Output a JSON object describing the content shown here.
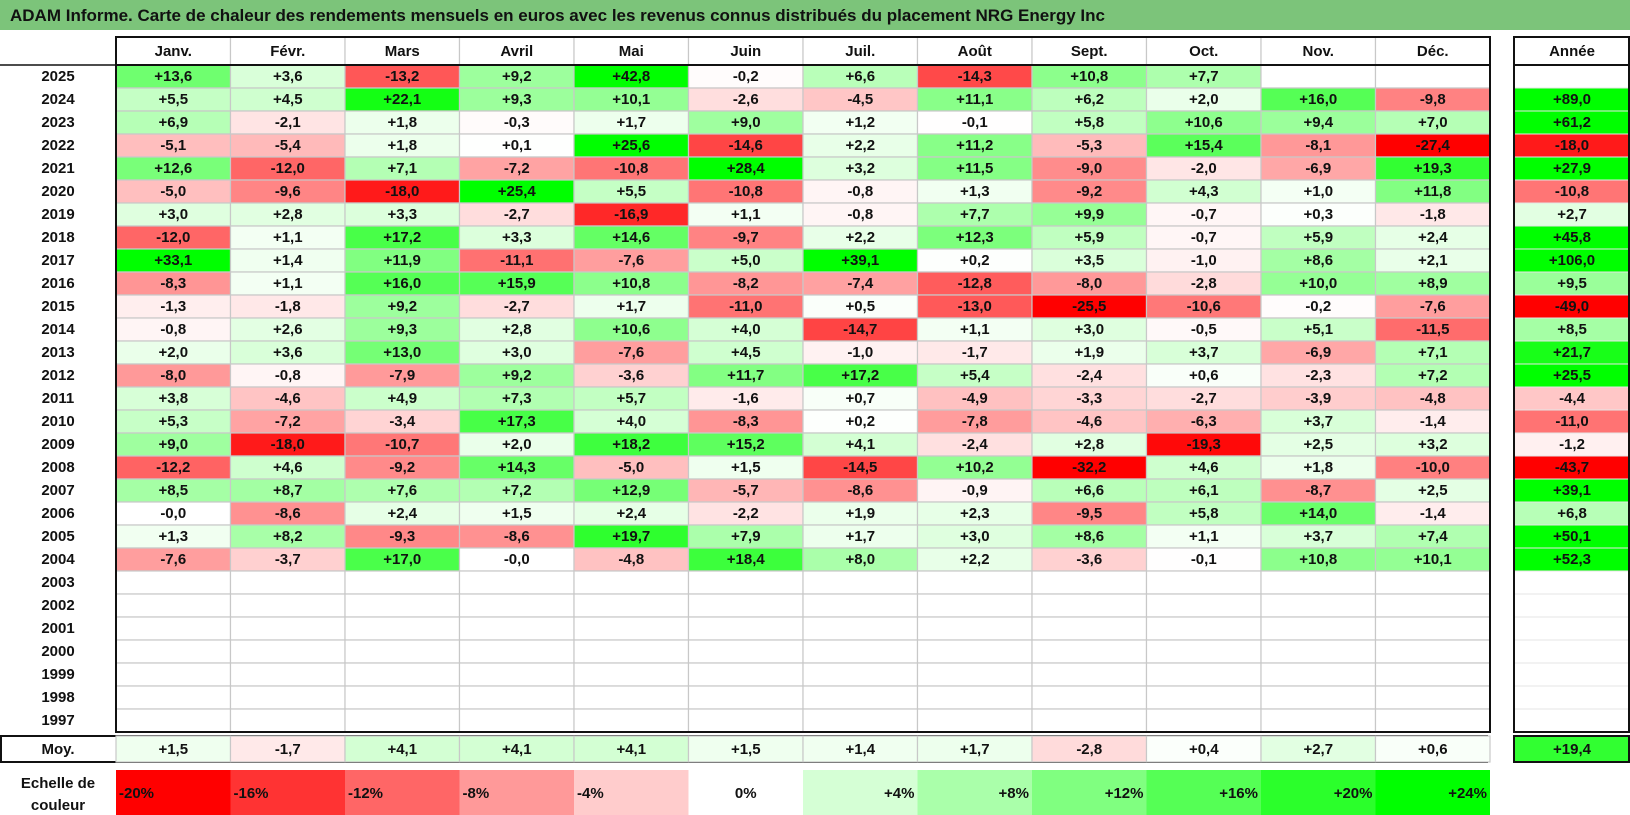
{
  "title": "ADAM Informe. Carte de chaleur des rendements mensuels en euros avec les revenus connus distribués du placement NRG Energy Inc",
  "chart_data": {
    "type": "heatmap",
    "months": [
      "Janv.",
      "Févr.",
      "Mars",
      "Avril",
      "Mai",
      "Juin",
      "Juil.",
      "Août",
      "Sept.",
      "Oct.",
      "Nov.",
      "Déc."
    ],
    "year_column_label": "Année",
    "rows": [
      {
        "year": "2025",
        "values": [
          "+13,6",
          "+3,6",
          "-13,2",
          "+9,2",
          "+42,8",
          "-0,2",
          "+6,6",
          "-14,3",
          "+10,8",
          "+7,7",
          "",
          ""
        ],
        "annual": ""
      },
      {
        "year": "2024",
        "values": [
          "+5,5",
          "+4,5",
          "+22,1",
          "+9,3",
          "+10,1",
          "-2,6",
          "-4,5",
          "+11,1",
          "+6,2",
          "+2,0",
          "+16,0",
          "-9,8"
        ],
        "annual": "+89,0"
      },
      {
        "year": "2023",
        "values": [
          "+6,9",
          "-2,1",
          "+1,8",
          "-0,3",
          "+1,7",
          "+9,0",
          "+1,2",
          "-0,1",
          "+5,8",
          "+10,6",
          "+9,4",
          "+7,0"
        ],
        "annual": "+61,2"
      },
      {
        "year": "2022",
        "values": [
          "-5,1",
          "-5,4",
          "+1,8",
          "+0,1",
          "+25,6",
          "-14,6",
          "+2,2",
          "+11,2",
          "-5,3",
          "+15,4",
          "-8,1",
          "-27,4"
        ],
        "annual": "-18,0"
      },
      {
        "year": "2021",
        "values": [
          "+12,6",
          "-12,0",
          "+7,1",
          "-7,2",
          "-10,8",
          "+28,4",
          "+3,2",
          "+11,5",
          "-9,0",
          "-2,0",
          "-6,9",
          "+19,3"
        ],
        "annual": "+27,9"
      },
      {
        "year": "2020",
        "values": [
          "-5,0",
          "-9,6",
          "-18,0",
          "+25,4",
          "+5,5",
          "-10,8",
          "-0,8",
          "+1,3",
          "-9,2",
          "+4,3",
          "+1,0",
          "+11,8"
        ],
        "annual": "-10,8"
      },
      {
        "year": "2019",
        "values": [
          "+3,0",
          "+2,8",
          "+3,3",
          "-2,7",
          "-16,9",
          "+1,1",
          "-0,8",
          "+7,7",
          "+9,9",
          "-0,7",
          "+0,3",
          "-1,8"
        ],
        "annual": "+2,7"
      },
      {
        "year": "2018",
        "values": [
          "-12,0",
          "+1,1",
          "+17,2",
          "+3,3",
          "+14,6",
          "-9,7",
          "+2,2",
          "+12,3",
          "+5,9",
          "-0,7",
          "+5,9",
          "+2,4"
        ],
        "annual": "+45,8"
      },
      {
        "year": "2017",
        "values": [
          "+33,1",
          "+1,4",
          "+11,9",
          "-11,1",
          "-7,6",
          "+5,0",
          "+39,1",
          "+0,2",
          "+3,5",
          "-1,0",
          "+8,6",
          "+2,1"
        ],
        "annual": "+106,0"
      },
      {
        "year": "2016",
        "values": [
          "-8,3",
          "+1,1",
          "+16,0",
          "+15,9",
          "+10,8",
          "-8,2",
          "-7,4",
          "-12,8",
          "-8,0",
          "-2,8",
          "+10,0",
          "+8,9"
        ],
        "annual": "+9,5"
      },
      {
        "year": "2015",
        "values": [
          "-1,3",
          "-1,8",
          "+9,2",
          "-2,7",
          "+1,7",
          "-11,0",
          "+0,5",
          "-13,0",
          "-25,5",
          "-10,6",
          "-0,2",
          "-7,6"
        ],
        "annual": "-49,0"
      },
      {
        "year": "2014",
        "values": [
          "-0,8",
          "+2,6",
          "+9,3",
          "+2,8",
          "+10,6",
          "+4,0",
          "-14,7",
          "+1,1",
          "+3,0",
          "-0,5",
          "+5,1",
          "-11,5"
        ],
        "annual": "+8,5"
      },
      {
        "year": "2013",
        "values": [
          "+2,0",
          "+3,6",
          "+13,0",
          "+3,0",
          "-7,6",
          "+4,5",
          "-1,0",
          "-1,7",
          "+1,9",
          "+3,7",
          "-6,9",
          "+7,1"
        ],
        "annual": "+21,7"
      },
      {
        "year": "2012",
        "values": [
          "-8,0",
          "-0,8",
          "-7,9",
          "+9,2",
          "-3,6",
          "+11,7",
          "+17,2",
          "+5,4",
          "-2,4",
          "+0,6",
          "-2,3",
          "+7,2"
        ],
        "annual": "+25,5"
      },
      {
        "year": "2011",
        "values": [
          "+3,8",
          "-4,6",
          "+4,9",
          "+7,3",
          "+5,7",
          "-1,6",
          "+0,7",
          "-4,9",
          "-3,3",
          "-2,7",
          "-3,9",
          "-4,8"
        ],
        "annual": "-4,4"
      },
      {
        "year": "2010",
        "values": [
          "+5,3",
          "-7,2",
          "-3,4",
          "+17,3",
          "+4,0",
          "-8,3",
          "+0,2",
          "-7,8",
          "-4,6",
          "-6,3",
          "+3,7",
          "-1,4"
        ],
        "annual": "-11,0"
      },
      {
        "year": "2009",
        "values": [
          "+9,0",
          "-18,0",
          "-10,7",
          "+2,0",
          "+18,2",
          "+15,2",
          "+4,1",
          "-2,4",
          "+2,8",
          "-19,3",
          "+2,5",
          "+3,2"
        ],
        "annual": "-1,2"
      },
      {
        "year": "2008",
        "values": [
          "-12,2",
          "+4,6",
          "-9,2",
          "+14,3",
          "-5,0",
          "+1,5",
          "-14,5",
          "+10,2",
          "-32,2",
          "+4,6",
          "+1,8",
          "-10,0"
        ],
        "annual": "-43,7"
      },
      {
        "year": "2007",
        "values": [
          "+8,5",
          "+8,7",
          "+7,6",
          "+7,2",
          "+12,9",
          "-5,7",
          "-8,6",
          "-0,9",
          "+6,6",
          "+6,1",
          "-8,7",
          "+2,5"
        ],
        "annual": "+39,1"
      },
      {
        "year": "2006",
        "values": [
          "-0,0",
          "-8,6",
          "+2,4",
          "+1,5",
          "+2,4",
          "-2,2",
          "+1,9",
          "+2,3",
          "-9,5",
          "+5,8",
          "+14,0",
          "-1,4"
        ],
        "annual": "+6,8"
      },
      {
        "year": "2005",
        "values": [
          "+1,3",
          "+8,2",
          "-9,3",
          "-8,6",
          "+19,7",
          "+7,9",
          "+1,7",
          "+3,0",
          "+8,6",
          "+1,1",
          "+3,7",
          "+7,4"
        ],
        "annual": "+50,1"
      },
      {
        "year": "2004",
        "values": [
          "-7,6",
          "-3,7",
          "+17,0",
          "-0,0",
          "-4,8",
          "+18,4",
          "+8,0",
          "+2,2",
          "-3,6",
          "-0,1",
          "+10,8",
          "+10,1"
        ],
        "annual": "+52,3"
      },
      {
        "year": "2003",
        "values": [
          "",
          "",
          "",
          "",
          "",
          "",
          "",
          "",
          "",
          "",
          "",
          ""
        ],
        "annual": ""
      },
      {
        "year": "2002",
        "values": [
          "",
          "",
          "",
          "",
          "",
          "",
          "",
          "",
          "",
          "",
          "",
          ""
        ],
        "annual": ""
      },
      {
        "year": "2001",
        "values": [
          "",
          "",
          "",
          "",
          "",
          "",
          "",
          "",
          "",
          "",
          "",
          ""
        ],
        "annual": ""
      },
      {
        "year": "2000",
        "values": [
          "",
          "",
          "",
          "",
          "",
          "",
          "",
          "",
          "",
          "",
          "",
          ""
        ],
        "annual": ""
      },
      {
        "year": "1999",
        "values": [
          "",
          "",
          "",
          "",
          "",
          "",
          "",
          "",
          "",
          "",
          "",
          ""
        ],
        "annual": ""
      },
      {
        "year": "1998",
        "values": [
          "",
          "",
          "",
          "",
          "",
          "",
          "",
          "",
          "",
          "",
          "",
          ""
        ],
        "annual": ""
      },
      {
        "year": "1997",
        "values": [
          "",
          "",
          "",
          "",
          "",
          "",
          "",
          "",
          "",
          "",
          "",
          ""
        ],
        "annual": ""
      }
    ],
    "average": {
      "label": "Moy.",
      "values": [
        "+1,5",
        "-1,7",
        "+4,1",
        "+4,1",
        "+4,1",
        "+1,5",
        "+1,4",
        "+1,7",
        "-2,8",
        "+0,4",
        "+2,7",
        "+0,6"
      ],
      "annual": "+19,4"
    },
    "color_scale": {
      "label": "Echelle de couleur",
      "stops": [
        {
          "label": "-20%",
          "value": -20
        },
        {
          "label": "-16%",
          "value": -16
        },
        {
          "label": "-12%",
          "value": -12
        },
        {
          "label": "-8%",
          "value": -8
        },
        {
          "label": "-4%",
          "value": -4
        },
        {
          "label": "0%",
          "value": 0
        },
        {
          "label": "+4%",
          "value": 4
        },
        {
          "label": "+8%",
          "value": 8
        },
        {
          "label": "+12%",
          "value": 12
        },
        {
          "label": "+16%",
          "value": 16
        },
        {
          "label": "+20%",
          "value": 20
        },
        {
          "label": "+24%",
          "value": 24
        }
      ]
    },
    "colors": {
      "negative": "#ff0000",
      "neutral": "#ffffff",
      "positive": "#00ff00",
      "title_bar": "#7cc47a"
    }
  }
}
